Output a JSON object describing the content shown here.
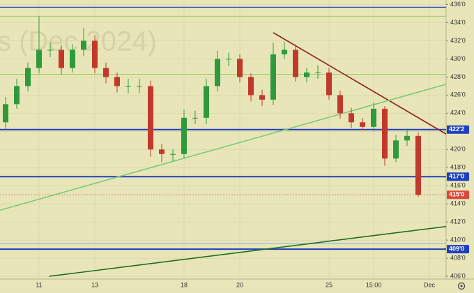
{
  "chart_data": {
    "type": "candlestick",
    "watermark": "s (Dec 2024)",
    "categories": [
      null,
      null,
      null,
      "11",
      null,
      null,
      null,
      null,
      "13",
      null,
      null,
      null,
      null,
      null,
      null,
      null,
      "18",
      null,
      null,
      null,
      null,
      "20",
      null,
      null,
      null,
      null,
      null,
      null,
      null,
      "25",
      null,
      null,
      null,
      "15:00",
      null,
      null,
      null,
      null,
      "Dec",
      null
    ],
    "open": [
      423,
      425,
      427,
      429,
      431,
      431,
      429,
      431,
      432,
      429,
      428,
      427,
      427,
      427,
      420,
      419.5,
      419.5,
      423.5,
      423.5,
      427,
      430,
      430,
      428,
      426,
      425.5,
      430.5,
      431,
      428,
      428.5,
      428.5,
      426,
      424,
      423,
      422.5,
      424.5,
      419,
      421,
      421.5,
      null,
      null
    ],
    "high": [
      425.8,
      427.8,
      429.6,
      434.7,
      431.8,
      431.5,
      431.6,
      433.4,
      432.6,
      429.6,
      428.5,
      427.8,
      427.8,
      427.6,
      420.6,
      420,
      424.4,
      424.3,
      427.8,
      430.9,
      430.7,
      430.5,
      428.4,
      426.6,
      431.8,
      431.9,
      431.6,
      429,
      429.3,
      429,
      426.5,
      424.6,
      423.5,
      425.2,
      424.8,
      421.6,
      422.3,
      421.9,
      null,
      null
    ],
    "low": [
      422.2,
      424.5,
      426.4,
      428.4,
      430.2,
      428.3,
      428.5,
      430.3,
      428.4,
      427.3,
      426.3,
      426.2,
      426.2,
      419.2,
      418.6,
      418.7,
      419,
      422.8,
      422.8,
      426.4,
      429.2,
      427.4,
      425.3,
      424.8,
      424.9,
      430,
      427.5,
      427.4,
      427.8,
      425.5,
      423.4,
      422.4,
      422.1,
      422,
      418.2,
      418.6,
      420.4,
      414.8,
      null,
      null
    ],
    "close": [
      425,
      427,
      429,
      431,
      431,
      429,
      431,
      432,
      429,
      428,
      427,
      427,
      427,
      420,
      419.5,
      419.5,
      423.5,
      423.5,
      427,
      430,
      430,
      428,
      426,
      425.5,
      430.5,
      431,
      428,
      428.5,
      428.5,
      426,
      424,
      423,
      422.5,
      424.5,
      419,
      421,
      421.5,
      415,
      null,
      null
    ],
    "up_color": "#2e9a3c",
    "down_color": "#c0392b",
    "ylim": [
      405.7,
      436.5
    ],
    "yticks": [
      {
        "value": 406,
        "label": "406'0"
      },
      {
        "value": 408,
        "label": "408'0"
      },
      {
        "value": 410,
        "label": "410'0"
      },
      {
        "value": 412,
        "label": "412'0"
      },
      {
        "value": 414,
        "label": "414'0"
      },
      {
        "value": 416,
        "label": "416'0"
      },
      {
        "value": 418,
        "label": "418'0"
      },
      {
        "value": 420,
        "label": "420'0"
      },
      {
        "value": 422,
        "label": "422'0"
      },
      {
        "value": 424,
        "label": "424'0"
      },
      {
        "value": 426,
        "label": "426'0"
      },
      {
        "value": 428,
        "label": "428'0"
      },
      {
        "value": 430,
        "label": "430'0"
      },
      {
        "value": 432,
        "label": "432'0"
      },
      {
        "value": 434,
        "label": "434'0"
      },
      {
        "value": 436,
        "label": "436'0"
      }
    ],
    "levels": [
      {
        "value": 435.7,
        "color": "#2a45c8",
        "width": 1.2
      },
      {
        "value": 434.7,
        "color": "#9ccc6a",
        "width": 1
      },
      {
        "value": 428.3,
        "color": "#9ccc6a",
        "width": 1
      },
      {
        "value": 422.2,
        "color": "#1f3fc0",
        "width": 2
      },
      {
        "value": 417.0,
        "color": "#1f3fc0",
        "width": 2
      },
      {
        "value": 415.0,
        "color": "#e07a6a",
        "width": 1,
        "dashed": true
      },
      {
        "value": 409.6,
        "color": "#8fb0e8",
        "width": 1
      },
      {
        "value": 409.0,
        "color": "#1f3fc0",
        "width": 2
      }
    ],
    "price_tags": [
      {
        "value": 422.2,
        "label": "422'2",
        "color": "#1f3fc0"
      },
      {
        "value": 417.0,
        "label": "417'0",
        "color": "#1f3fc0"
      },
      {
        "value": 415.0,
        "label": "415'0",
        "color": "#d9483b"
      },
      {
        "value": 409.0,
        "label": "409'0",
        "color": "#1f3fc0"
      }
    ],
    "trend_lines": [
      {
        "x": [
          24,
          39.5
        ],
        "y": [
          432.9,
          421.7
        ],
        "color": "#8b1a1a"
      },
      {
        "x": [
          -0.5,
          39.5
        ],
        "y": [
          413.3,
          427.2
        ],
        "color": "#7cc97a"
      },
      {
        "x": [
          3.9,
          39.5
        ],
        "y": [
          406.0,
          411.5
        ],
        "color": "#1f6e22"
      }
    ]
  }
}
